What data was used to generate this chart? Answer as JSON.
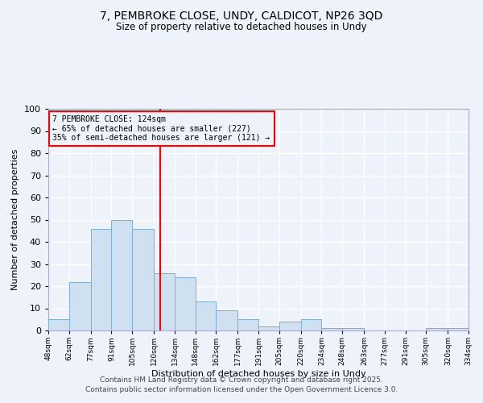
{
  "title_line1": "7, PEMBROKE CLOSE, UNDY, CALDICOT, NP26 3QD",
  "title_line2": "Size of property relative to detached houses in Undy",
  "xlabel": "Distribution of detached houses by size in Undy",
  "ylabel": "Number of detached properties",
  "bar_color": "#cfe0f0",
  "bar_edge_color": "#7aafd4",
  "background_color": "#eef2fb",
  "grid_color": "#ffffff",
  "vline_x": 124,
  "vline_color": "red",
  "annotation_text": "7 PEMBROKE CLOSE: 124sqm\n← 65% of detached houses are smaller (227)\n35% of semi-detached houses are larger (121) →",
  "annotation_box_color": "red",
  "bin_edges": [
    48,
    62,
    77,
    91,
    105,
    120,
    134,
    148,
    162,
    177,
    191,
    205,
    220,
    234,
    248,
    263,
    277,
    291,
    305,
    320,
    334
  ],
  "bin_counts": [
    5,
    22,
    46,
    50,
    46,
    26,
    24,
    13,
    9,
    5,
    2,
    4,
    5,
    1,
    1,
    0,
    0,
    0,
    1,
    1
  ],
  "ylim": [
    0,
    100
  ],
  "yticks": [
    0,
    10,
    20,
    30,
    40,
    50,
    60,
    70,
    80,
    90,
    100
  ],
  "footer_text": "Contains HM Land Registry data © Crown copyright and database right 2025.\nContains public sector information licensed under the Open Government Licence 3.0.",
  "footer_fontsize": 6.5
}
